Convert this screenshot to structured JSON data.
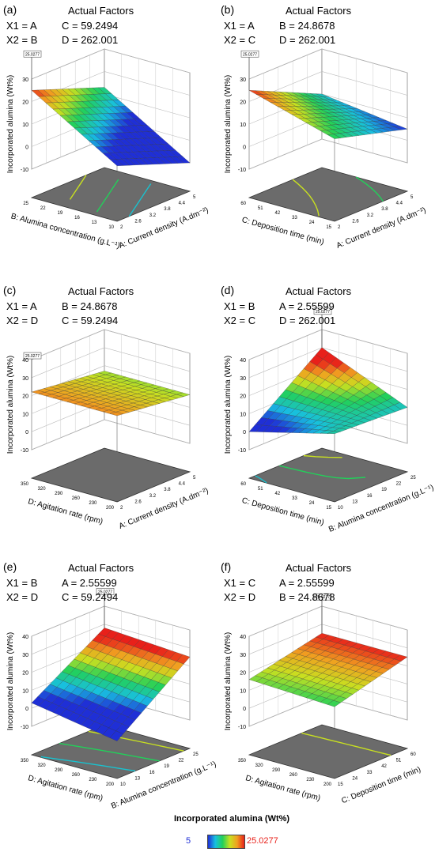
{
  "figure": {
    "colorbar": {
      "title": "Incorporated alumina (Wt%)",
      "min_label": "5",
      "max_label": "25.0277",
      "min_color": "#1f2fd6",
      "max_color": "#e8201a"
    }
  },
  "chart_data": [
    {
      "id": "a",
      "type": "surface3d",
      "panel_label": "(a)",
      "factors_title": "Actual Factors",
      "x1_text": "X1 = A",
      "x2_text": "X2 = B",
      "fixed1_text": "C = 59.2494",
      "fixed2_text": "D = 262.001",
      "zlabel": "Incorporated alumina (Wt%)",
      "xlabel": "A: Current density (A.dm⁻²)",
      "ylabel": "B: Alumina concentration (g.L⁻¹)",
      "z_ticks": [
        "30",
        "20",
        "10",
        "0",
        "-10"
      ],
      "x_ticks": [
        "2",
        "2.6",
        "3.2",
        "3.8",
        "4.4",
        "5"
      ],
      "y_ticks": [
        "10",
        "13",
        "16",
        "19",
        "22",
        "25"
      ],
      "zlim": [
        -10,
        30
      ],
      "surface_corners": {
        "x_min_y_min": 2,
        "x_max_y_min": -10,
        "x_min_y_max": 25,
        "x_max_y_max": 13
      },
      "flag_text": "25.0277",
      "flag_corner": "x_min_y_max"
    },
    {
      "id": "b",
      "type": "surface3d",
      "panel_label": "(b)",
      "factors_title": "Actual Factors",
      "x1_text": "X1 = A",
      "x2_text": "X2 = C",
      "fixed1_text": "B = 24.8678",
      "fixed2_text": "D = 262.001",
      "zlabel": "Incorporated alumina (Wt%)",
      "xlabel": "A: Current density (A.dm⁻²)",
      "ylabel": "C: Deposition time (min)",
      "z_ticks": [
        "30",
        "20",
        "10",
        "0",
        "-10"
      ],
      "x_ticks": [
        "2",
        "2.6",
        "3.2",
        "3.8",
        "4.4",
        "5"
      ],
      "y_ticks": [
        "15",
        "24",
        "33",
        "42",
        "51",
        "60"
      ],
      "zlim": [
        -10,
        30
      ],
      "surface_corners": {
        "x_min_y_min": 14,
        "x_max_y_min": 5,
        "x_min_y_max": 25,
        "x_max_y_max": 10
      },
      "flag_text": "25.0277",
      "flag_corner": "x_min_y_max"
    },
    {
      "id": "c",
      "type": "surface3d",
      "panel_label": "(c)",
      "factors_title": "Actual Factors",
      "x1_text": "X1 = A",
      "x2_text": "X2 = D",
      "fixed1_text": "B = 24.8678",
      "fixed2_text": "C = 59.2494",
      "zlabel": "Incorporated alumina (Wt%)",
      "xlabel": "A: Current density (A.dm⁻²)",
      "ylabel": "D: Agitation rate (rpm)",
      "z_ticks": [
        "40",
        "30",
        "20",
        "10",
        "0",
        "-10"
      ],
      "x_ticks": [
        "2",
        "2.6",
        "3.2",
        "3.8",
        "4.4",
        "5"
      ],
      "y_ticks": [
        "200",
        "230",
        "260",
        "290",
        "320",
        "350"
      ],
      "zlim": [
        -10,
        40
      ],
      "surface_corners": {
        "x_min_y_min": 22,
        "x_max_y_min": 17,
        "x_min_y_max": 22,
        "x_max_y_max": 17
      },
      "flag_text": "25.0277",
      "flag_corner": "x_min_y_max"
    },
    {
      "id": "d",
      "type": "surface3d",
      "panel_label": "(d)",
      "factors_title": "Actual Factors",
      "x1_text": "X1 = B",
      "x2_text": "X2 = C",
      "fixed1_text": "A = 2.55599",
      "fixed2_text": "D = 262.001",
      "zlabel": "Incorporated alumina (Wt%)",
      "xlabel": "B: Alumina concentration (g.L⁻¹)",
      "ylabel": "C: Deposition time (min)",
      "z_ticks": [
        "40",
        "30",
        "20",
        "10",
        "0",
        "-10"
      ],
      "x_ticks": [
        "10",
        "13",
        "16",
        "19",
        "22",
        "25"
      ],
      "y_ticks": [
        "15",
        "24",
        "33",
        "42",
        "51",
        "60"
      ],
      "zlim": [
        -10,
        40
      ],
      "surface_corners": {
        "x_min_y_min": 12,
        "x_max_y_min": 10,
        "x_min_y_max": 0,
        "x_max_y_max": 30
      },
      "flag_text": "25.0277",
      "flag_corner": "x_max_y_max"
    },
    {
      "id": "e",
      "type": "surface3d",
      "panel_label": "(e)",
      "factors_title": "Actual Factors",
      "x1_text": "X1 = B",
      "x2_text": "X2 = D",
      "fixed1_text": "A = 2.55599",
      "fixed2_text": "C = 59.2494",
      "zlabel": "Incorporated alumina (Wt%)",
      "xlabel": "B: Alumina concentration (g.L⁻¹)",
      "ylabel": "D: Agitation rate (rpm)",
      "z_ticks": [
        "40",
        "30",
        "20",
        "10",
        "0",
        "-10"
      ],
      "x_ticks": [
        "10",
        "13",
        "16",
        "19",
        "22",
        "25"
      ],
      "y_ticks": [
        "200",
        "230",
        "260",
        "290",
        "320",
        "350"
      ],
      "zlim": [
        -10,
        40
      ],
      "surface_corners": {
        "x_min_y_min": -5,
        "x_max_y_min": 25,
        "x_min_y_max": 3,
        "x_max_y_max": 28
      },
      "flag_text": "25.0277",
      "flag_corner": "x_max_y_max"
    },
    {
      "id": "f",
      "type": "surface3d",
      "panel_label": "(f)",
      "factors_title": "Actual Factors",
      "x1_text": "X1 = C",
      "x2_text": "X2 = D",
      "fixed1_text": "A = 2.55599",
      "fixed2_text": "B = 24.8678",
      "zlabel": "Incorporated alumina (Wt%)",
      "xlabel": "C: Deposition time (min)",
      "ylabel": "D: Agitation rate (rpm)",
      "z_ticks": [
        "40",
        "30",
        "20",
        "10",
        "0",
        "-10"
      ],
      "x_ticks": [
        "15",
        "24",
        "33",
        "42",
        "51",
        "60"
      ],
      "y_ticks": [
        "200",
        "230",
        "260",
        "290",
        "320",
        "350"
      ],
      "zlim": [
        -10,
        40
      ],
      "surface_corners": {
        "x_min_y_min": 14,
        "x_max_y_min": 25,
        "x_min_y_max": 16,
        "x_max_y_max": 25
      },
      "flag_text": "25.0277",
      "flag_corner": "x_max_y_max"
    }
  ]
}
